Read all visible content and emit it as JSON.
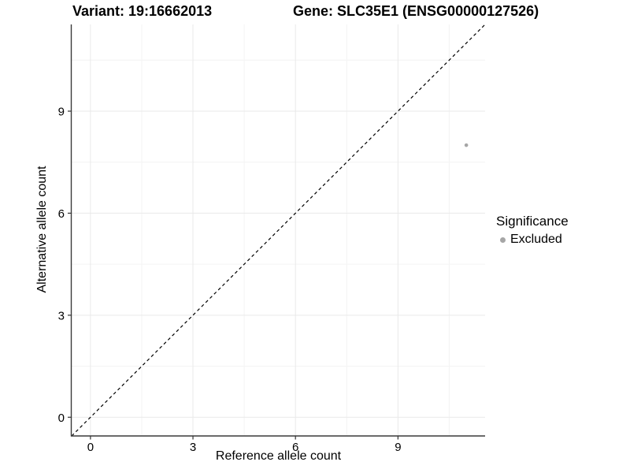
{
  "title": {
    "variant": "Variant: 19:16662013",
    "gene": "Gene: SLC35E1 (ENSG00000127526)"
  },
  "chart_data": {
    "type": "scatter",
    "title": "Variant: 19:16662013   Gene: SLC35E1 (ENSG00000127526)",
    "xlabel": "Reference allele count",
    "ylabel": "Alternative allele count",
    "points": [
      {
        "x": 11,
        "y": 8,
        "series": "Excluded"
      }
    ],
    "series": [
      {
        "name": "Excluded",
        "color": "#a6a6a6"
      }
    ],
    "xticks": [
      0,
      3,
      6,
      9
    ],
    "yticks": [
      0,
      3,
      6,
      9
    ],
    "x_minor_ticks": [
      1.5,
      4.5,
      7.5,
      10.5
    ],
    "y_minor_ticks": [
      1.5,
      4.5,
      7.5,
      10.5
    ],
    "xlim": [
      -0.55,
      11.55
    ],
    "ylim": [
      -0.55,
      11.55
    ],
    "grid": true,
    "reference_line": {
      "slope": 1,
      "intercept": 0,
      "style": "dashed",
      "color": "#000000"
    },
    "legend": {
      "position": "right",
      "title": "Significance",
      "entries": [
        {
          "label": "Excluded",
          "color": "#a6a6a6"
        }
      ]
    }
  },
  "colors": {
    "point": "#a6a6a6",
    "grid_major": "#e9e9e9",
    "grid_minor": "#f4f4f4",
    "axis_line": "#3a3a3a",
    "tick": "#333333",
    "dashed_line": "#000000",
    "background": "#ffffff"
  }
}
